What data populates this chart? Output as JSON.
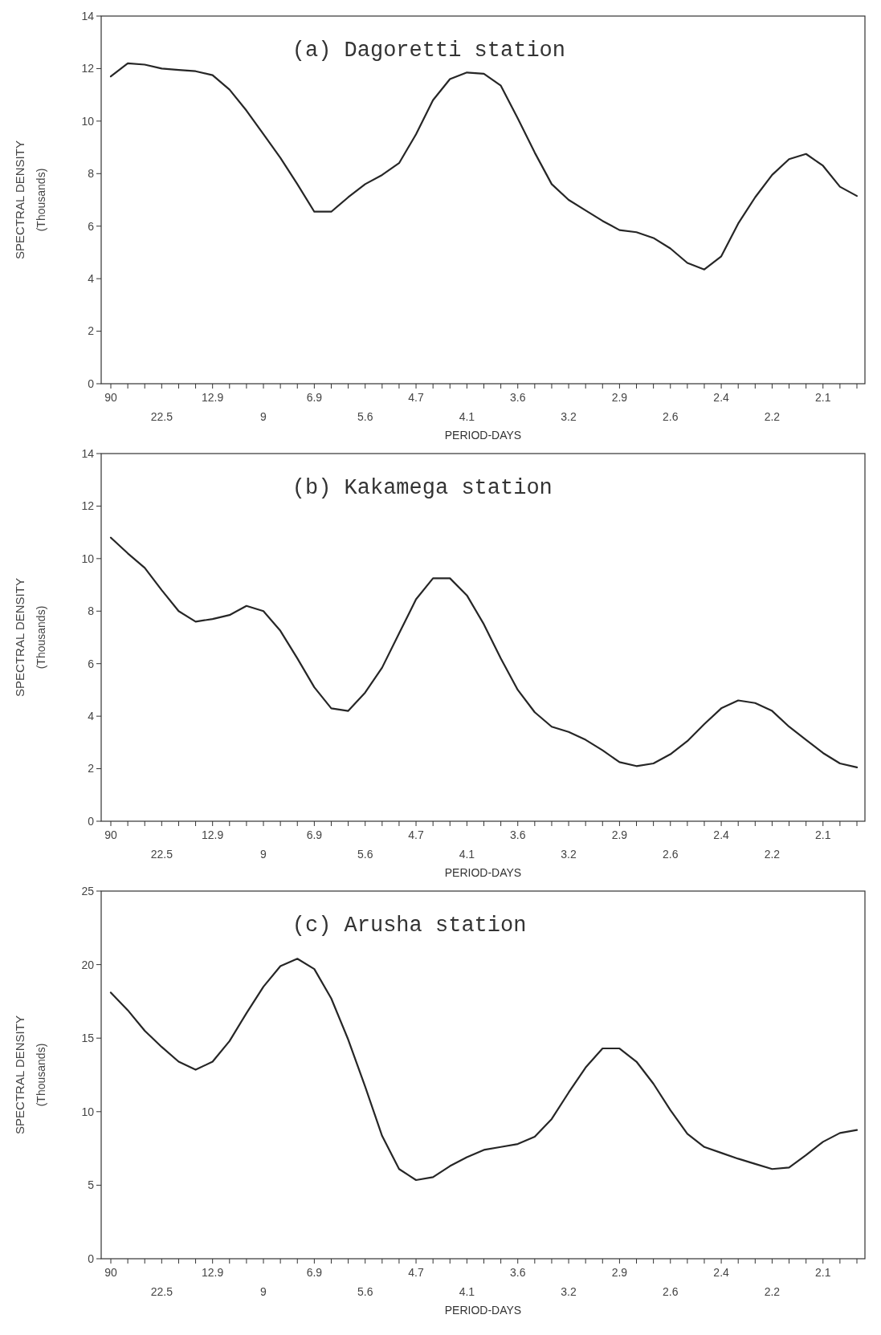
{
  "chart_data": [
    {
      "type": "line",
      "title": "(a) Dagoretti station",
      "xlabel": "PERIOD-DAYS",
      "ylabel": "SPECTRAL DENSITY\n(Thousands)",
      "categories": [
        "90",
        null,
        null,
        "22.5",
        null,
        null,
        "12.9",
        null,
        null,
        "9",
        null,
        null,
        "6.9",
        null,
        null,
        "5.6",
        null,
        null,
        "4.7",
        null,
        null,
        "4.1",
        null,
        null,
        "3.6",
        null,
        null,
        "3.2",
        null,
        null,
        "2.9",
        null,
        null,
        "2.6",
        null,
        null,
        "2.4",
        null,
        null,
        "2.2",
        null,
        null,
        "2.1",
        null,
        null
      ],
      "series": [
        {
          "color": "#262626",
          "values": [
            11.7,
            12.2,
            12.15,
            12.0,
            11.95,
            11.9,
            11.75,
            11.2,
            10.4,
            9.5,
            8.6,
            7.6,
            6.55,
            6.55,
            7.1,
            7.6,
            7.95,
            8.4,
            9.5,
            10.8,
            11.6,
            11.85,
            11.8,
            11.35,
            10.1,
            8.8,
            7.6,
            7.0,
            6.6,
            6.2,
            5.85,
            5.77,
            5.55,
            5.15,
            4.6,
            4.35,
            4.85,
            6.1,
            7.1,
            7.95,
            8.55,
            8.75,
            8.3,
            7.5,
            7.15
          ]
        }
      ],
      "ylim": [
        0,
        14
      ],
      "yticks": [
        0,
        2,
        4,
        6,
        8,
        10,
        12,
        14
      ],
      "grid": false,
      "marker": "none",
      "line_style": "solid"
    },
    {
      "type": "line",
      "title": "(b) Kakamega station",
      "xlabel": "PERIOD-DAYS",
      "ylabel": "SPECTRAL DENSITY\n(Thousands)",
      "categories": [
        "90",
        null,
        null,
        "22.5",
        null,
        null,
        "12.9",
        null,
        null,
        "9",
        null,
        null,
        "6.9",
        null,
        null,
        "5.6",
        null,
        null,
        "4.7",
        null,
        null,
        "4.1",
        null,
        null,
        "3.6",
        null,
        null,
        "3.2",
        null,
        null,
        "2.9",
        null,
        null,
        "2.6",
        null,
        null,
        "2.4",
        null,
        null,
        "2.2",
        null,
        null,
        "2.1",
        null,
        null
      ],
      "series": [
        {
          "color": "#262626",
          "values": [
            10.8,
            10.2,
            9.65,
            8.8,
            8.0,
            7.6,
            7.7,
            7.85,
            8.2,
            8.0,
            7.25,
            6.2,
            5.1,
            4.3,
            4.2,
            4.9,
            5.85,
            7.15,
            8.45,
            9.25,
            9.25,
            8.6,
            7.5,
            6.2,
            5.0,
            4.15,
            3.6,
            3.4,
            3.1,
            2.7,
            2.25,
            2.1,
            2.2,
            2.55,
            3.05,
            3.7,
            4.3,
            4.6,
            4.5,
            4.2,
            3.6,
            3.1,
            2.6,
            2.2,
            2.05
          ]
        }
      ],
      "ylim": [
        0,
        14
      ],
      "yticks": [
        0,
        2,
        4,
        6,
        8,
        10,
        12,
        14
      ],
      "grid": false,
      "marker": "none",
      "line_style": "solid"
    },
    {
      "type": "line",
      "title": "(c) Arusha station",
      "xlabel": "PERIOD-DAYS",
      "ylabel": "SPECTRAL DENSITY\n(Thousands)",
      "categories": [
        "90",
        null,
        null,
        "22.5",
        null,
        null,
        "12.9",
        null,
        null,
        "9",
        null,
        null,
        "6.9",
        null,
        null,
        "5.6",
        null,
        null,
        "4.7",
        null,
        null,
        "4.1",
        null,
        null,
        "3.6",
        null,
        null,
        "3.2",
        null,
        null,
        "2.9",
        null,
        null,
        "2.6",
        null,
        null,
        "2.4",
        null,
        null,
        "2.2",
        null,
        null,
        "2.1",
        null,
        null
      ],
      "series": [
        {
          "color": "#262626",
          "values": [
            18.1,
            16.9,
            15.5,
            14.4,
            13.4,
            12.85,
            13.4,
            14.8,
            16.7,
            18.5,
            19.9,
            20.4,
            19.7,
            17.7,
            14.9,
            11.7,
            8.35,
            6.1,
            5.35,
            5.55,
            6.3,
            6.9,
            7.4,
            7.6,
            7.8,
            8.3,
            9.5,
            11.3,
            13.0,
            14.3,
            14.3,
            13.4,
            11.9,
            10.1,
            8.5,
            7.6,
            7.2,
            6.8,
            6.45,
            6.1,
            6.2,
            7.05,
            7.95,
            8.55,
            8.75
          ]
        }
      ],
      "ylim": [
        0,
        25
      ],
      "yticks": [
        0,
        5,
        10,
        15,
        20,
        25
      ],
      "grid": false,
      "marker": "none",
      "line_style": "solid"
    }
  ]
}
